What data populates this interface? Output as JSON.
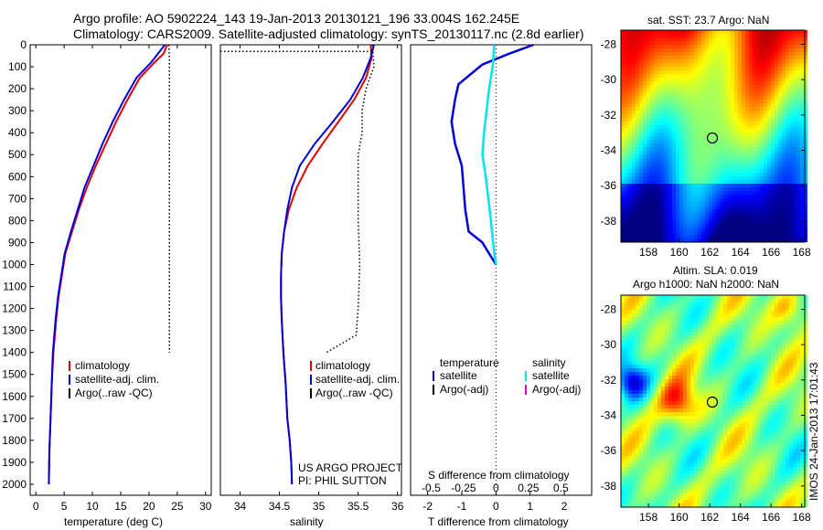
{
  "header": {
    "line1": "Argo profile: AO 5902224_143 19-Jan-2013 20130121_196 33.004S 162.245E",
    "line2": "Climatology: CARS2009. Satellite-adjusted climatology: synTS_20130117.nc (2.8d earlier)"
  },
  "depth_ticks": [
    "0",
    "100",
    "200",
    "300",
    "400",
    "500",
    "600",
    "700",
    "800",
    "900",
    "1000",
    "1100",
    "1200",
    "1300",
    "1400",
    "1500",
    "1600",
    "1700",
    "1800",
    "1900",
    "2000"
  ],
  "colors": {
    "climatology": "#e00000",
    "satellite": "#0000dd",
    "argo": "#000000",
    "salinity_sat": "#00e5ee",
    "salinity_argo": "#dd00dd"
  },
  "panels": {
    "temperature": {
      "xlabel": "temperature (deg C)",
      "ticks": [
        "0",
        "5",
        "10",
        "15",
        "20",
        "25",
        "30"
      ],
      "legend": [
        "climatology",
        "satellite-adj. clim.",
        "Argo(..raw -QC)"
      ]
    },
    "salinity": {
      "xlabel": "salinity",
      "ticks": [
        "34",
        "34.5",
        "35",
        "35.5",
        "36"
      ],
      "legend": [
        "climatology",
        "satellite-adj. clim.",
        "Argo(..raw -QC)"
      ],
      "credit1": "US ARGO PROJECT",
      "credit2": "PI: PHIL SUTTON"
    },
    "difference": {
      "xlabel": "T difference from climatology",
      "xlabel_top": "S difference from climatology",
      "ticks_bottom": [
        "-2",
        "-1",
        "0",
        "1",
        "2"
      ],
      "ticks_top": [
        "-0.5",
        "-0.25",
        "0",
        "0.25",
        "0.5"
      ],
      "legend_t_title": "temperature",
      "legend_s_title": "salinity",
      "legend_t": [
        "satellite",
        "Argo(-adj)"
      ],
      "legend_s": [
        "satellite",
        "Argo(-adj)"
      ]
    }
  },
  "maps": {
    "sst_title": "sat. SST: 23.7  Argo: NaN",
    "sla_title1": "Altim. SLA: 0.019",
    "sla_title2": "Argo h1000: NaN h2000: NaN",
    "lon_ticks": [
      "158",
      "160",
      "162",
      "164",
      "166",
      "168"
    ],
    "lat_ticks": [
      "-28",
      "-30",
      "-32",
      "-34",
      "-36",
      "-38"
    ],
    "side_label": "IMOS 24-Jan-2013 17:01:43"
  },
  "chart_data": [
    {
      "type": "line",
      "title": "",
      "xlabel": "temperature (deg C)",
      "ylabel": "",
      "xlim": [
        -1,
        31
      ],
      "ylim": [
        2050,
        0
      ],
      "series": [
        {
          "name": "climatology",
          "x": [
            23.2,
            22.6,
            21.0,
            18.4,
            16.2,
            14.2,
            12.4,
            10.6,
            9.0,
            7.6,
            6.4,
            5.2,
            4.6,
            4.0,
            3.6,
            3.1,
            2.8,
            2.6,
            2.4,
            2.3
          ],
          "y": [
            0,
            40,
            80,
            150,
            250,
            350,
            450,
            550,
            650,
            750,
            850,
            950,
            1050,
            1150,
            1250,
            1400,
            1550,
            1700,
            1850,
            2000
          ]
        },
        {
          "name": "satellite-adj. clim.",
          "x": [
            22.8,
            21.6,
            20.4,
            17.8,
            15.6,
            13.6,
            11.8,
            10.2,
            8.6,
            7.4,
            6.2,
            5.1,
            4.5,
            3.9,
            3.5,
            3.0,
            2.8,
            2.6,
            2.4,
            2.3
          ],
          "y": [
            0,
            40,
            80,
            150,
            250,
            350,
            450,
            550,
            650,
            750,
            850,
            950,
            1050,
            1150,
            1250,
            1400,
            1550,
            1700,
            1850,
            2000
          ]
        },
        {
          "name": "Argo(..raw -QC)",
          "x": [
            23.5,
            23.6,
            23.6,
            23.6,
            23.6,
            23.6,
            23.6
          ],
          "y": [
            0,
            50,
            200,
            600,
            1000,
            1200,
            1400
          ]
        }
      ]
    },
    {
      "type": "line",
      "title": "",
      "xlabel": "salinity",
      "ylabel": "",
      "xlim": [
        33.75,
        36.05
      ],
      "ylim": [
        2050,
        0
      ],
      "series": [
        {
          "name": "climatology",
          "x": [
            35.66,
            35.67,
            35.6,
            35.45,
            35.25,
            35.05,
            34.86,
            34.72,
            34.62,
            34.56,
            34.53,
            34.52,
            34.52,
            34.53,
            34.55,
            34.58,
            34.6,
            34.63,
            34.65,
            34.66
          ],
          "y": [
            0,
            60,
            150,
            250,
            350,
            450,
            550,
            650,
            750,
            850,
            950,
            1050,
            1150,
            1250,
            1400,
            1550,
            1700,
            1800,
            1900,
            2000
          ]
        },
        {
          "name": "satellite-adj. clim.",
          "x": [
            35.7,
            35.66,
            35.56,
            35.4,
            35.18,
            34.95,
            34.76,
            34.66,
            34.6,
            34.56,
            34.53,
            34.52,
            34.52,
            34.53,
            34.55,
            34.58,
            34.6,
            34.63,
            34.65,
            34.66
          ],
          "y": [
            0,
            60,
            150,
            250,
            350,
            450,
            550,
            650,
            750,
            850,
            950,
            1050,
            1150,
            1250,
            1400,
            1550,
            1700,
            1800,
            1900,
            2000
          ]
        },
        {
          "name": "Argo(..raw -QC)",
          "x": [
            35.68,
            35.7,
            35.6,
            35.55,
            35.55,
            35.5,
            35.5,
            35.52,
            35.5,
            35.48,
            35.48,
            35.1
          ],
          "y": [
            0,
            100,
            200,
            300,
            400,
            500,
            800,
            1000,
            1200,
            1300,
            1320,
            1400
          ]
        }
      ]
    },
    {
      "type": "line",
      "title": "",
      "xlabel": "T difference from climatology",
      "ylabel": "",
      "xlim": [
        -2.5,
        2.8
      ],
      "ylim": [
        2050,
        0
      ],
      "series": [
        {
          "name": "temperature satellite",
          "x": [
            1.1,
            0.4,
            -0.4,
            -1.1,
            -1.2,
            -1.3,
            -1.2,
            -1.0,
            -0.95,
            -0.9,
            -0.8,
            -0.4,
            -0.2,
            0.0
          ],
          "y": [
            0,
            40,
            90,
            180,
            250,
            350,
            450,
            550,
            650,
            750,
            850,
            900,
            950,
            1000
          ]
        },
        {
          "name": "salinity satellite",
          "x": [
            -0.05,
            -0.1,
            -0.2,
            -0.35,
            -0.4,
            -0.3,
            -0.15,
            -0.05,
            0.0
          ],
          "y": [
            0,
            100,
            200,
            400,
            500,
            600,
            800,
            950,
            1000
          ]
        }
      ]
    }
  ]
}
